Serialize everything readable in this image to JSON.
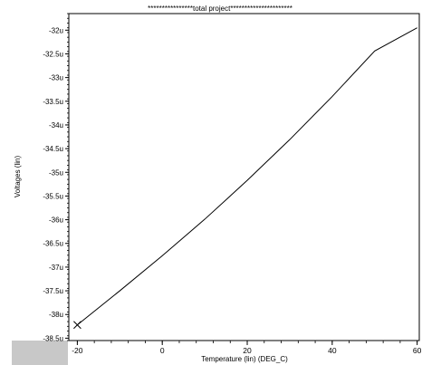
{
  "chart_data": {
    "type": "line",
    "title": "****************total project**********************",
    "xlabel": "Temperature (lin) (DEG_C)",
    "ylabel": "Voltages (lin)",
    "xlim": [
      -22,
      60.5
    ],
    "ylim": [
      -38.55,
      -31.65
    ],
    "grid": false,
    "legend": "none",
    "x_ticks": [
      -20,
      0,
      20,
      40,
      60
    ],
    "x_tick_labels": [
      "-20",
      "0",
      "20",
      "40",
      "60"
    ],
    "y_ticks": [
      -32,
      -32.5,
      -33,
      -33.5,
      -34,
      -34.5,
      -35,
      -35.5,
      -36,
      -36.5,
      -37,
      -37.5,
      -38,
      -38.5
    ],
    "y_tick_labels": [
      "-32u",
      "-32.5u",
      "-33u",
      "-33.5u",
      "-34u",
      "-34.5u",
      "-35u",
      "-35.5u",
      "-36u",
      "-36.5u",
      "-37u",
      "-37.5u",
      "-38u",
      "-38.5u"
    ],
    "series": [
      {
        "color": "#000000",
        "marker": "x",
        "marker_at": [
          -20,
          -38.22
        ],
        "x": [
          -20,
          -10,
          0,
          10,
          20,
          30,
          40,
          50,
          60
        ],
        "values": [
          -38.22,
          -37.5,
          -36.76,
          -35.99,
          -35.17,
          -34.31,
          -33.4,
          -32.44,
          -31.95
        ]
      }
    ]
  }
}
